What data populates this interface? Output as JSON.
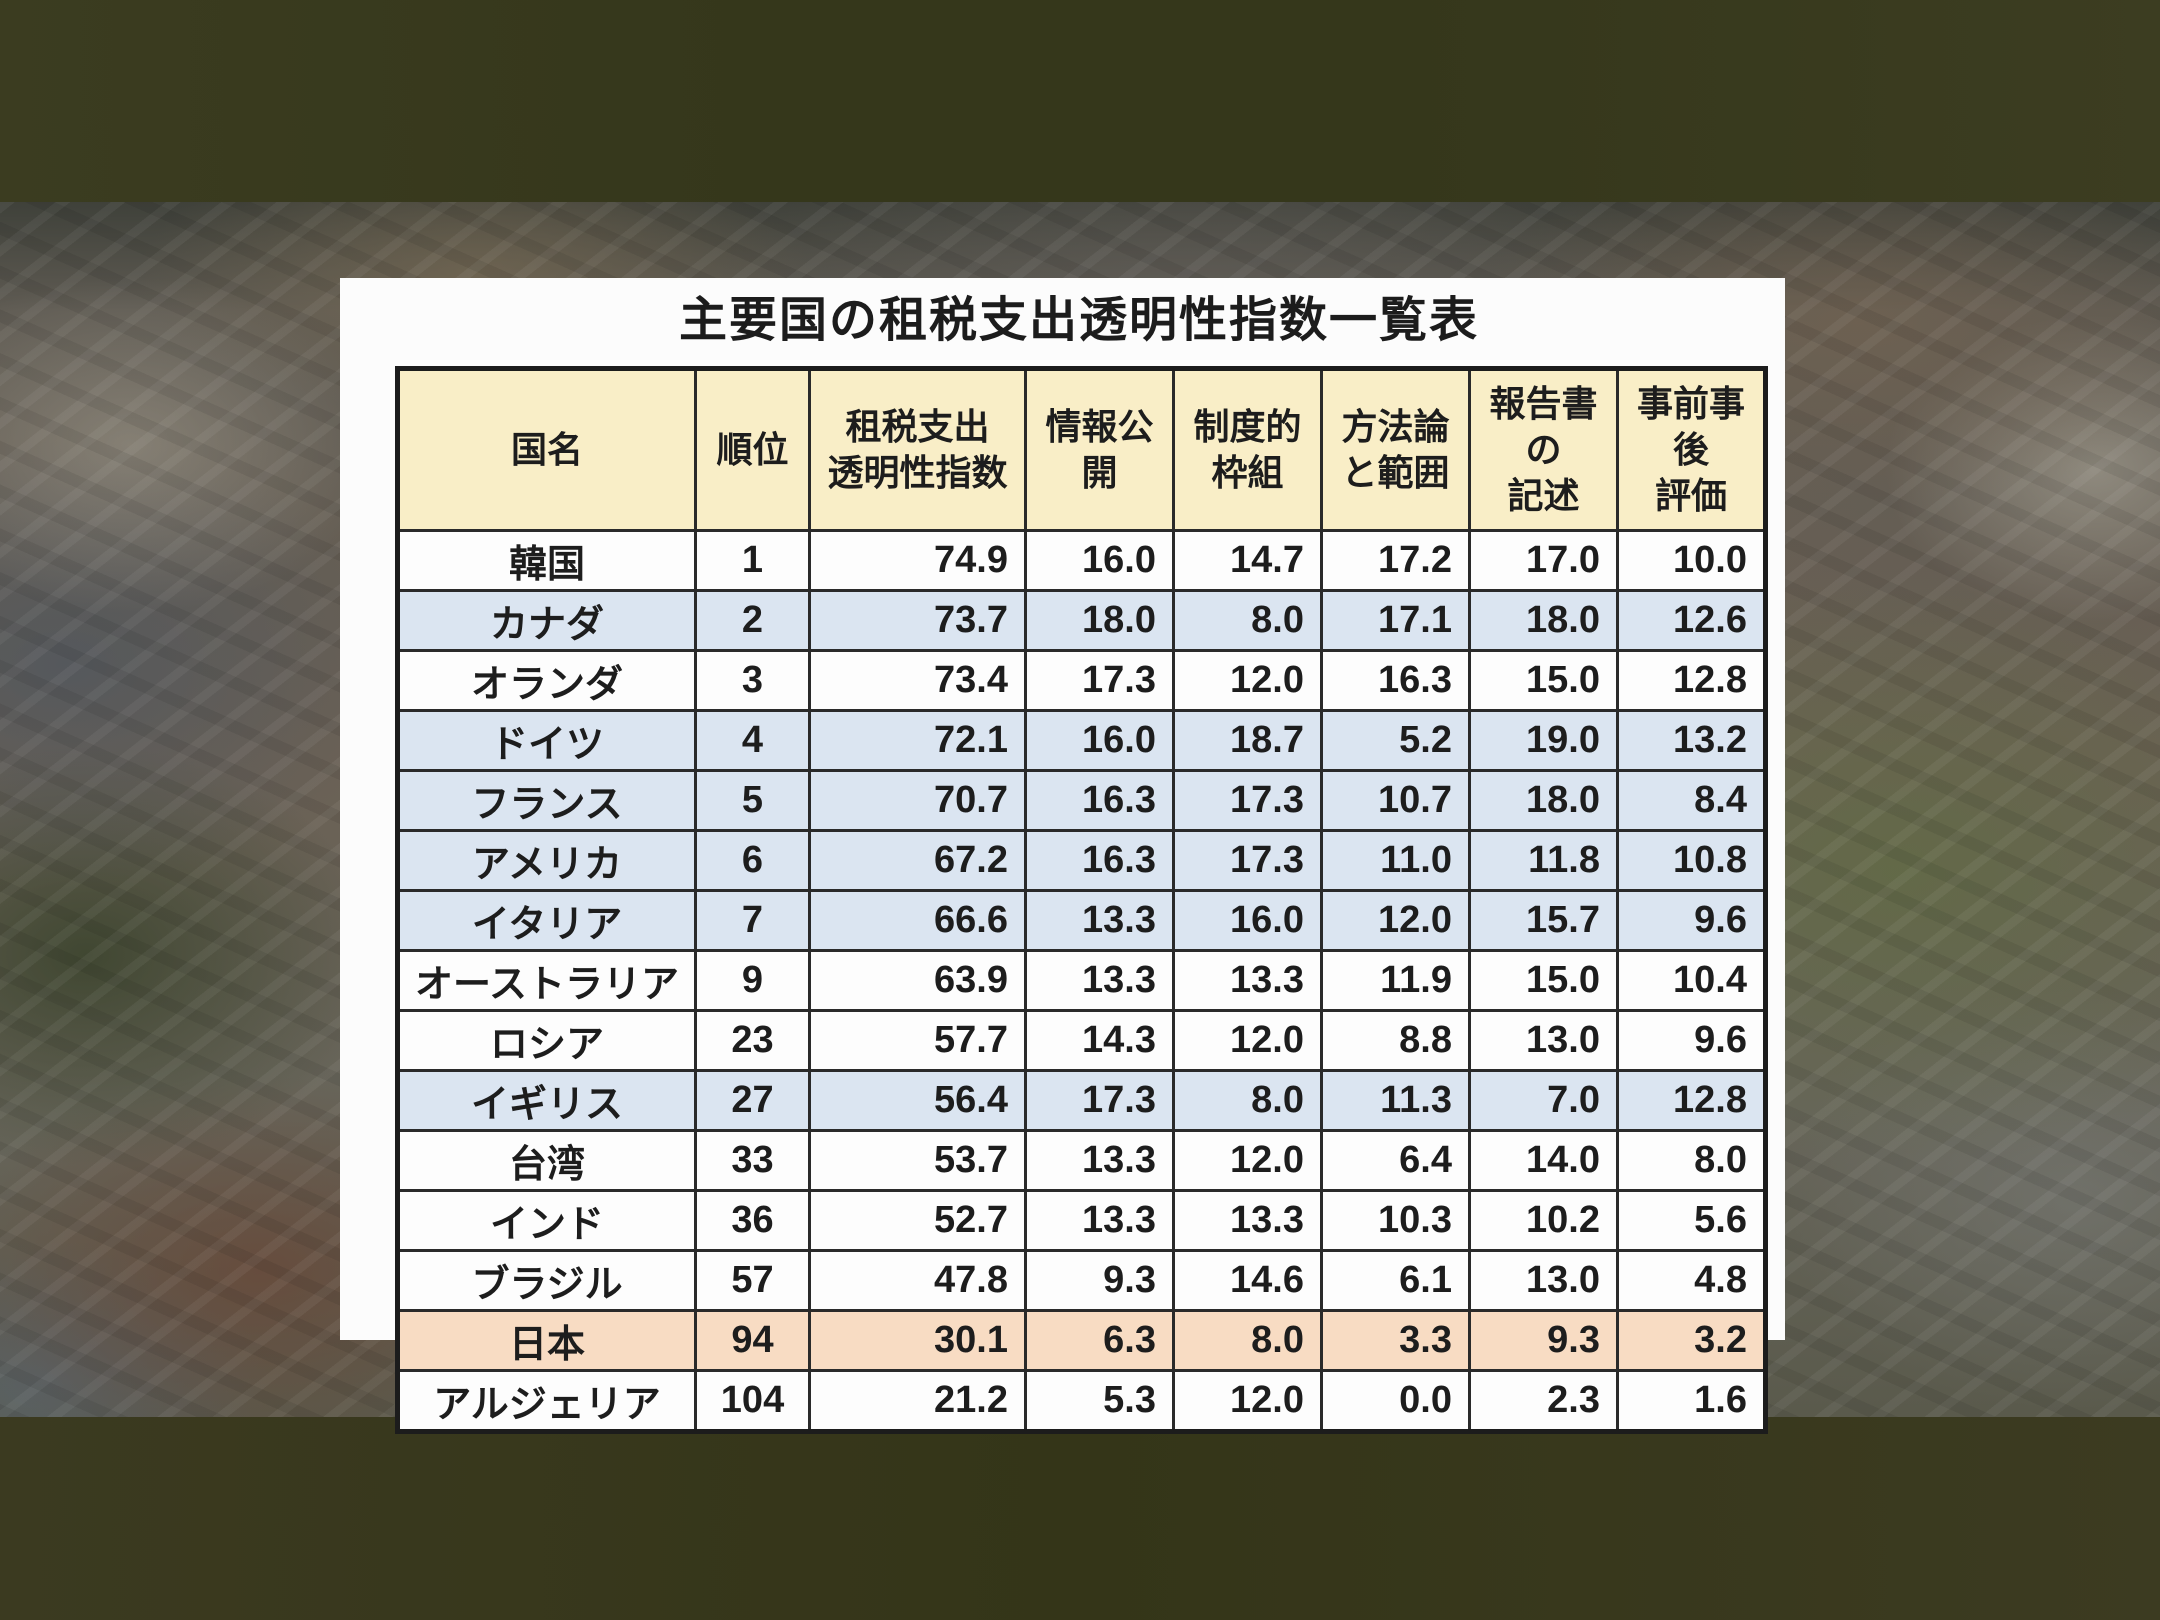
{
  "table_card": {
    "title": "主要国の租税支出透明性指数一覧表",
    "columns": [
      {
        "id": "country",
        "lines": [
          "国名"
        ]
      },
      {
        "id": "rank",
        "lines": [
          "順位"
        ]
      },
      {
        "id": "index",
        "lines": [
          "租税支出",
          "透明性指数"
        ]
      },
      {
        "id": "disclosure",
        "lines": [
          "情報公開"
        ]
      },
      {
        "id": "framework",
        "lines": [
          "制度的",
          "枠組"
        ]
      },
      {
        "id": "methodology",
        "lines": [
          "方法論",
          "と範囲"
        ]
      },
      {
        "id": "report",
        "lines": [
          "報告書の",
          "記述"
        ]
      },
      {
        "id": "evaluation",
        "lines": [
          "事前事後",
          "評価"
        ]
      }
    ],
    "rows": [
      {
        "country": "韓国",
        "rank": "1",
        "index": "74.9",
        "disclosure": "16.0",
        "framework": "14.7",
        "methodology": "17.2",
        "report": "17.0",
        "evaluation": "10.0",
        "band": "plain"
      },
      {
        "country": "カナダ",
        "rank": "2",
        "index": "73.7",
        "disclosure": "18.0",
        "framework": "8.0",
        "methodology": "17.1",
        "report": "18.0",
        "evaluation": "12.6",
        "band": "g7"
      },
      {
        "country": "オランダ",
        "rank": "3",
        "index": "73.4",
        "disclosure": "17.3",
        "framework": "12.0",
        "methodology": "16.3",
        "report": "15.0",
        "evaluation": "12.8",
        "band": "plain"
      },
      {
        "country": "ドイツ",
        "rank": "4",
        "index": "72.1",
        "disclosure": "16.0",
        "framework": "18.7",
        "methodology": "5.2",
        "report": "19.0",
        "evaluation": "13.2",
        "band": "g7"
      },
      {
        "country": "フランス",
        "rank": "5",
        "index": "70.7",
        "disclosure": "16.3",
        "framework": "17.3",
        "methodology": "10.7",
        "report": "18.0",
        "evaluation": "8.4",
        "band": "g7"
      },
      {
        "country": "アメリカ",
        "rank": "6",
        "index": "67.2",
        "disclosure": "16.3",
        "framework": "17.3",
        "methodology": "11.0",
        "report": "11.8",
        "evaluation": "10.8",
        "band": "g7"
      },
      {
        "country": "イタリア",
        "rank": "7",
        "index": "66.6",
        "disclosure": "13.3",
        "framework": "16.0",
        "methodology": "12.0",
        "report": "15.7",
        "evaluation": "9.6",
        "band": "g7"
      },
      {
        "country": "オーストラリア",
        "rank": "9",
        "index": "63.9",
        "disclosure": "13.3",
        "framework": "13.3",
        "methodology": "11.9",
        "report": "15.0",
        "evaluation": "10.4",
        "band": "plain"
      },
      {
        "country": "ロシア",
        "rank": "23",
        "index": "57.7",
        "disclosure": "14.3",
        "framework": "12.0",
        "methodology": "8.8",
        "report": "13.0",
        "evaluation": "9.6",
        "band": "plain"
      },
      {
        "country": "イギリス",
        "rank": "27",
        "index": "56.4",
        "disclosure": "17.3",
        "framework": "8.0",
        "methodology": "11.3",
        "report": "7.0",
        "evaluation": "12.8",
        "band": "g7"
      },
      {
        "country": "台湾",
        "rank": "33",
        "index": "53.7",
        "disclosure": "13.3",
        "framework": "12.0",
        "methodology": "6.4",
        "report": "14.0",
        "evaluation": "8.0",
        "band": "plain"
      },
      {
        "country": "インド",
        "rank": "36",
        "index": "52.7",
        "disclosure": "13.3",
        "framework": "13.3",
        "methodology": "10.3",
        "report": "10.2",
        "evaluation": "5.6",
        "band": "plain"
      },
      {
        "country": "ブラジル",
        "rank": "57",
        "index": "47.8",
        "disclosure": "9.3",
        "framework": "14.6",
        "methodology": "6.1",
        "report": "13.0",
        "evaluation": "4.8",
        "band": "plain"
      },
      {
        "country": "日本",
        "rank": "94",
        "index": "30.1",
        "disclosure": "6.3",
        "framework": "8.0",
        "methodology": "3.3",
        "report": "9.3",
        "evaluation": "3.2",
        "band": "japan"
      },
      {
        "country": "アルジェリア",
        "rank": "104",
        "index": "21.2",
        "disclosure": "5.3",
        "framework": "12.0",
        "methodology": "0.0",
        "report": "2.3",
        "evaluation": "1.6",
        "band": "plain"
      }
    ],
    "colors": {
      "header_bg": "#f9eec7",
      "plain_row_bg": "#fdfdfd",
      "g7_row_bg": "#dbe5f1",
      "japan_row_bg": "#f8dcc3",
      "border": "#1c1c1c",
      "text": "#1d1d1d"
    }
  },
  "chart_data": {
    "type": "table",
    "title": "主要国の租税支出透明性指数一覧表",
    "columns": [
      "国名",
      "順位",
      "租税支出透明性指数",
      "情報公開",
      "制度的枠組",
      "方法論と範囲",
      "報告書の記述",
      "事前事後評価"
    ],
    "rows": [
      [
        "韓国",
        1,
        74.9,
        16.0,
        14.7,
        17.2,
        17.0,
        10.0
      ],
      [
        "カナダ",
        2,
        73.7,
        18.0,
        8.0,
        17.1,
        18.0,
        12.6
      ],
      [
        "オランダ",
        3,
        73.4,
        17.3,
        12.0,
        16.3,
        15.0,
        12.8
      ],
      [
        "ドイツ",
        4,
        72.1,
        16.0,
        18.7,
        5.2,
        19.0,
        13.2
      ],
      [
        "フランス",
        5,
        70.7,
        16.3,
        17.3,
        10.7,
        18.0,
        8.4
      ],
      [
        "アメリカ",
        6,
        67.2,
        16.3,
        17.3,
        11.0,
        11.8,
        10.8
      ],
      [
        "イタリア",
        7,
        66.6,
        13.3,
        16.0,
        12.0,
        15.7,
        9.6
      ],
      [
        "オーストラリア",
        9,
        63.9,
        13.3,
        13.3,
        11.9,
        15.0,
        10.4
      ],
      [
        "ロシア",
        23,
        57.7,
        14.3,
        12.0,
        8.8,
        13.0,
        9.6
      ],
      [
        "イギリス",
        27,
        56.4,
        17.3,
        8.0,
        11.3,
        7.0,
        12.8
      ],
      [
        "台湾",
        33,
        53.7,
        13.3,
        12.0,
        6.4,
        14.0,
        8.0
      ],
      [
        "インド",
        36,
        52.7,
        13.3,
        13.3,
        10.3,
        10.2,
        5.6
      ],
      [
        "ブラジル",
        57,
        47.8,
        9.3,
        14.6,
        6.1,
        13.0,
        4.8
      ],
      [
        "日本",
        94,
        30.1,
        6.3,
        8.0,
        3.3,
        9.3,
        3.2
      ],
      [
        "アルジェリア",
        104,
        21.2,
        5.3,
        12.0,
        0.0,
        2.3,
        1.6
      ]
    ],
    "highlighted_rows": {
      "light_blue": [
        "カナダ",
        "ドイツ",
        "フランス",
        "アメリカ",
        "イタリア",
        "イギリス"
      ],
      "orange": [
        "日本"
      ]
    }
  }
}
